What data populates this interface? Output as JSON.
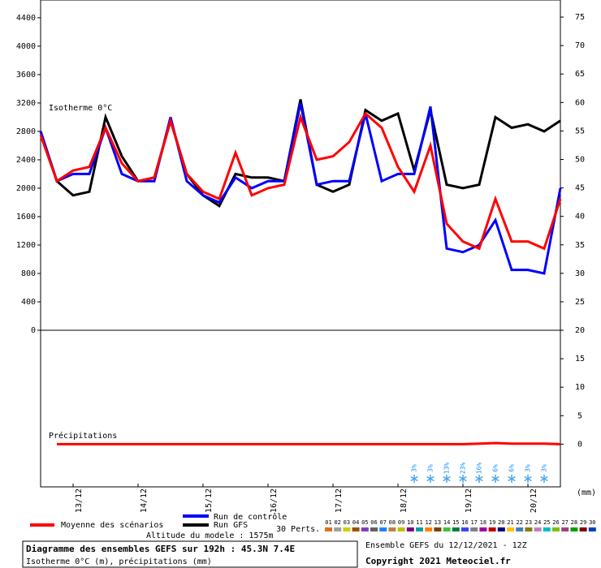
{
  "chart_data": [
    {
      "type": "line",
      "annotation": "Isotherme 0°C",
      "x": [
        12.5,
        12.75,
        13,
        13.25,
        13.5,
        13.75,
        14,
        14.25,
        14.5,
        14.75,
        15,
        15.25,
        15.5,
        15.75,
        16,
        16.25,
        16.5,
        16.75,
        17,
        17.25,
        17.5,
        17.75,
        18,
        18.25,
        18.5,
        18.75,
        19,
        19.25,
        19.5,
        19.75,
        20,
        20.25,
        20.5
      ],
      "series": [
        {
          "name": "Run GFS",
          "color": "#000000",
          "values": [
            2800,
            2100,
            1900,
            1950,
            3000,
            2450,
            2100,
            2150,
            2950,
            2200,
            1900,
            1750,
            2200,
            2150,
            2150,
            2100,
            3250,
            2050,
            1950,
            2050,
            3100,
            2950,
            3050,
            2250,
            3100,
            2050,
            2000,
            2050,
            3000,
            2850,
            2900,
            2800,
            2950
          ]
        },
        {
          "name": "Run de contrôle",
          "color": "#0000ff",
          "values": [
            2800,
            2100,
            2200,
            2200,
            2850,
            2200,
            2100,
            2100,
            3000,
            2100,
            1900,
            1800,
            2150,
            2000,
            2100,
            2100,
            3200,
            2050,
            2100,
            2100,
            3050,
            2100,
            2200,
            2200,
            3150,
            1150,
            1100,
            1200,
            1550,
            850,
            850,
            800,
            2000
          ]
        },
        {
          "name": "Moyenne des scénarios",
          "color": "#ff0000",
          "values": [
            2750,
            2100,
            2250,
            2300,
            2850,
            2350,
            2100,
            2150,
            2950,
            2200,
            1950,
            1850,
            2500,
            1900,
            2000,
            2050,
            3000,
            2400,
            2450,
            2650,
            3050,
            2850,
            2300,
            1950,
            2600,
            1500,
            1250,
            1150,
            1850,
            1250,
            1250,
            1150,
            1850
          ]
        }
      ],
      "xlim": [
        12.5,
        20.5
      ],
      "ylim": [
        0,
        4650
      ],
      "yticks": [
        0,
        400,
        800,
        1200,
        1600,
        2000,
        2400,
        2800,
        3200,
        3600,
        4000,
        4400
      ]
    },
    {
      "type": "line",
      "annotation": "Précipitations",
      "unit_label": "(mm)",
      "x": [
        12.75,
        13,
        13.25,
        13.5,
        13.75,
        14,
        14.25,
        14.5,
        14.75,
        15,
        15.25,
        15.5,
        15.75,
        16,
        16.25,
        16.5,
        16.75,
        17,
        17.25,
        17.5,
        17.75,
        18,
        18.25,
        18.5,
        18.75,
        19,
        19.25,
        19.5,
        19.75,
        20,
        20.25,
        20.5
      ],
      "series": [
        {
          "name": "Moyenne des scénarios",
          "color": "#ff0000",
          "values": [
            0,
            0,
            0,
            0,
            0,
            0,
            0,
            0,
            0,
            0,
            0,
            0,
            0,
            0,
            0,
            0,
            0,
            0,
            0,
            0,
            0,
            0,
            0,
            0,
            0,
            0,
            0.1,
            0.2,
            0.1,
            0.1,
            0.1,
            0
          ]
        }
      ],
      "xlim": [
        12.5,
        20.5
      ],
      "ylim": [
        -7.5,
        78
      ],
      "yticks": [
        0,
        5,
        10,
        15,
        20,
        25,
        30,
        35,
        40,
        45,
        50,
        55,
        60,
        65,
        70,
        75
      ],
      "xticks": [
        {
          "value": 13,
          "label": "13/12"
        },
        {
          "value": 14,
          "label": "14/12"
        },
        {
          "value": 15,
          "label": "15/12"
        },
        {
          "value": 16,
          "label": "16/12"
        },
        {
          "value": 17,
          "label": "17/12"
        },
        {
          "value": 18,
          "label": "18/12"
        },
        {
          "value": 19,
          "label": "19/12"
        },
        {
          "value": 20,
          "label": "20/12"
        }
      ],
      "snow_probability": {
        "x": [
          18.25,
          18.5,
          18.75,
          19,
          19.25,
          19.5,
          19.75,
          20,
          20.25
        ],
        "labels": [
          "3%",
          "3%",
          "13%",
          "23%",
          "16%",
          "6%",
          "6%",
          "3%",
          "3%"
        ]
      }
    }
  ],
  "legend": {
    "perts_label": "30 Perts.",
    "altitude": "Altitude du modele : 1575m",
    "perturbations": [
      {
        "name": "01",
        "color": "#e07020"
      },
      {
        "name": "02",
        "color": "#a0a0a0"
      },
      {
        "name": "03",
        "color": "#d0d000"
      },
      {
        "name": "04",
        "color": "#a05000"
      },
      {
        "name": "05",
        "color": "#8040c0"
      },
      {
        "name": "06",
        "color": "#606060"
      },
      {
        "name": "07",
        "color": "#2080ff"
      },
      {
        "name": "08",
        "color": "#c08040"
      },
      {
        "name": "09",
        "color": "#c0c000"
      },
      {
        "name": "10",
        "color": "#800080"
      },
      {
        "name": "11",
        "color": "#00a0a0"
      },
      {
        "name": "12",
        "color": "#ff8000"
      },
      {
        "name": "13",
        "color": "#804000"
      },
      {
        "name": "14",
        "color": "#40c040"
      },
      {
        "name": "15",
        "color": "#008040"
      },
      {
        "name": "16",
        "color": "#4040ff"
      },
      {
        "name": "17",
        "color": "#808080"
      },
      {
        "name": "18",
        "color": "#a000a0"
      },
      {
        "name": "19",
        "color": "#c00000"
      },
      {
        "name": "20",
        "color": "#000080"
      },
      {
        "name": "21",
        "color": "#ffc000"
      },
      {
        "name": "22",
        "color": "#4080c0"
      },
      {
        "name": "23",
        "color": "#808000"
      },
      {
        "name": "24",
        "color": "#c080c0"
      },
      {
        "name": "25",
        "color": "#00c0c0"
      },
      {
        "name": "26",
        "color": "#80c000"
      },
      {
        "name": "27",
        "color": "#a04080"
      },
      {
        "name": "28",
        "color": "#00a000"
      },
      {
        "name": "29",
        "color": "#800000"
      },
      {
        "name": "30",
        "color": "#0040c0"
      }
    ]
  },
  "footer": {
    "title": "Diagramme des ensembles GEFS sur 192h : 45.3N 7.4E",
    "subtitle": "Isotherme 0°C (m), précipitations (mm)",
    "run": "Ensemble GEFS du 12/12/2021 - 12Z",
    "copyright": "Copyright 2021 Meteociel.fr"
  }
}
